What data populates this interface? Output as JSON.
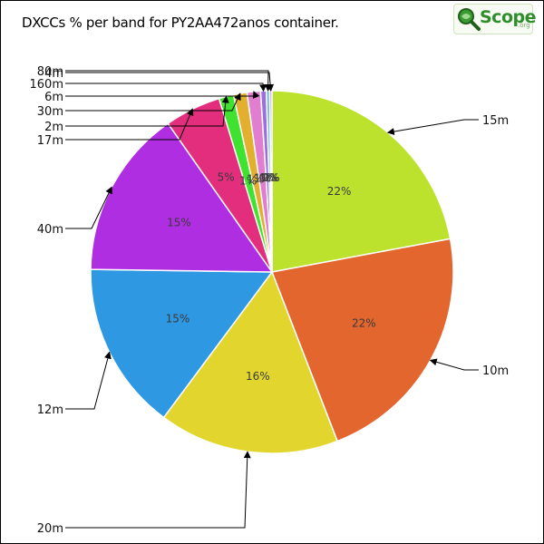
{
  "chart_data": {
    "type": "pie",
    "title": "DXCCs % per band for PY2AA472anos container.",
    "slices": [
      {
        "label": "15m",
        "value": 22,
        "pct_label": "22%",
        "color": "#bde22e"
      },
      {
        "label": "10m",
        "value": 22,
        "pct_label": "22%",
        "color": "#e2662e"
      },
      {
        "label": "20m",
        "value": 16,
        "pct_label": "16%",
        "color": "#e2d62e"
      },
      {
        "label": "12m",
        "value": 15,
        "pct_label": "15%",
        "color": "#2e98e2"
      },
      {
        "label": "40m",
        "value": 15,
        "pct_label": "15%",
        "color": "#b02ee2"
      },
      {
        "label": "17m",
        "value": 5,
        "pct_label": "5%",
        "color": "#e22e7c"
      },
      {
        "label": "2m",
        "value": 1.3,
        "pct_label": "1%",
        "color": "#3fe22e"
      },
      {
        "label": "30m",
        "value": 1.2,
        "pct_label": "1%",
        "color": "#e2b02e"
      },
      {
        "label": "6m",
        "value": 1.2,
        "pct_label": "1%",
        "color": "#e27ed0"
      },
      {
        "label": "160m",
        "value": 0.5,
        "pct_label": "0%",
        "color": "#9d6ee2"
      },
      {
        "label": "80m",
        "value": 0.3,
        "pct_label": "0%",
        "color": "#6ec0e2"
      },
      {
        "label": "4m",
        "value": 0.2,
        "pct_label": "0%",
        "color": "#d0a0e2"
      }
    ]
  },
  "logo": {
    "word": "Scope",
    "tld": ".org"
  }
}
